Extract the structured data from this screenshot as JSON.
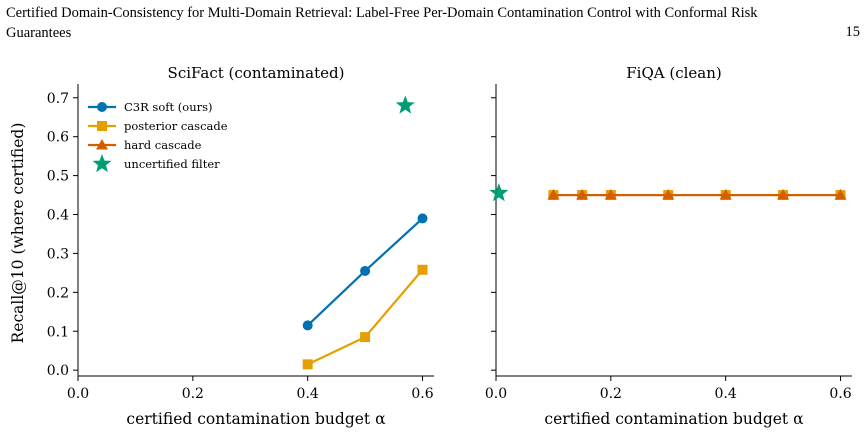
{
  "header": {
    "title": "Certified Domain-Consistency for Multi-Domain Retrieval: Label-Free Per-Domain Contamination Control with Conformal Risk Guarantees",
    "page_number": "15"
  },
  "colors": {
    "c3r_soft": "#0072b2",
    "posterior_cascade": "#e69f00",
    "hard_cascade": "#d55e00",
    "uncertified_filter": "#009e73"
  },
  "chart_data": [
    {
      "type": "line",
      "title": "SciFact (contaminated)",
      "xlabel": "certified contamination budget α",
      "ylabel": "Recall@10 (where certified)",
      "xlim": [
        0.0,
        0.62
      ],
      "ylim": [
        -0.015,
        0.72
      ],
      "xticks": [
        "0.0",
        "0.2",
        "0.4",
        "0.6"
      ],
      "yticks": [
        "0.0",
        "0.1",
        "0.2",
        "0.3",
        "0.4",
        "0.5",
        "0.6",
        "0.7"
      ],
      "legend_position": "top-left",
      "series": [
        {
          "name": "C3R soft (ours)",
          "marker": "circle",
          "x": [
            0.4,
            0.5,
            0.6
          ],
          "y": [
            0.115,
            0.255,
            0.39
          ]
        },
        {
          "name": "posterior cascade",
          "marker": "square",
          "x": [
            0.4,
            0.5,
            0.6
          ],
          "y": [
            0.015,
            0.085,
            0.258
          ]
        },
        {
          "name": "hard cascade",
          "marker": "triangle",
          "x": [],
          "y": []
        },
        {
          "name": "uncertified filter",
          "marker": "star",
          "x": [
            0.57
          ],
          "y": [
            0.68
          ]
        }
      ]
    },
    {
      "type": "line",
      "title": "FiQA (clean)",
      "xlabel": "certified contamination budget α",
      "xlim": [
        0.0,
        0.62
      ],
      "ylim": [
        -0.015,
        0.72
      ],
      "xticks": [
        "0.0",
        "0.2",
        "0.4",
        "0.6"
      ],
      "series": [
        {
          "marker": "circle",
          "x": [
            0.1,
            0.15,
            0.2,
            0.3,
            0.4,
            0.5,
            0.6
          ],
          "y": [
            0.45,
            0.45,
            0.45,
            0.45,
            0.45,
            0.45,
            0.45
          ]
        },
        {
          "marker": "square",
          "x": [
            0.1,
            0.15,
            0.2,
            0.3,
            0.4,
            0.5,
            0.6
          ],
          "y": [
            0.45,
            0.45,
            0.45,
            0.45,
            0.45,
            0.45,
            0.45
          ]
        },
        {
          "marker": "triangle",
          "x": [
            0.1,
            0.15,
            0.2,
            0.3,
            0.4,
            0.5,
            0.6
          ],
          "y": [
            0.45,
            0.45,
            0.45,
            0.45,
            0.45,
            0.45,
            0.45
          ]
        },
        {
          "marker": "star",
          "x": [
            0.005
          ],
          "y": [
            0.455
          ]
        }
      ]
    }
  ]
}
